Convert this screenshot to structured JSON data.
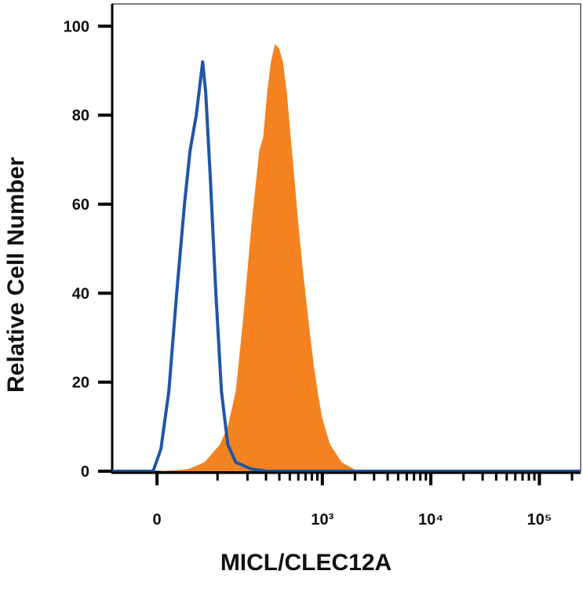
{
  "chart_data": {
    "type": "histogram-overlay",
    "x_label": "MICL/CLEC12A",
    "y_label": "Relative Cell Number",
    "xscale": "biexponential",
    "xlim": [
      -66,
      240000
    ],
    "xticks": [
      {
        "value": 0,
        "label": "0"
      },
      {
        "value": 1000,
        "label": "10³"
      },
      {
        "value": 10000,
        "label": "10⁴"
      },
      {
        "value": 100000,
        "label": "10⁵"
      }
    ],
    "xminorticks": [
      100,
      200,
      300,
      400,
      500,
      600,
      700,
      800,
      900,
      2000,
      3000,
      4000,
      5000,
      6000,
      7000,
      8000,
      9000,
      20000,
      30000,
      40000,
      50000,
      60000,
      70000,
      80000,
      90000,
      200000
    ],
    "ylim": [
      0,
      105
    ],
    "yticks": [
      0,
      20,
      40,
      60,
      80,
      100
    ],
    "series": [
      {
        "style": "filled",
        "color": "#f58220",
        "x": [
          -66,
          0,
          31,
          43,
          71,
          106,
          128,
          154,
          183,
          218,
          259,
          282,
          307,
          334,
          364,
          397,
          432,
          470,
          510,
          555,
          603,
          656,
          713,
          776,
          843,
          917,
          996,
          1178,
          1512,
          2112,
          240000
        ],
        "values": [
          0,
          0,
          0.3,
          0.5,
          2,
          6,
          10,
          18,
          35,
          55,
          72,
          75,
          85,
          92,
          96,
          95,
          92,
          85,
          75,
          65,
          55,
          46,
          38,
          30,
          23,
          17,
          12,
          6,
          2,
          0,
          0
        ]
      },
      {
        "style": "outline",
        "color": "#1f56a6",
        "x": [
          -66,
          -5,
          5,
          15.2,
          25.8,
          37,
          45.6,
          55.9,
          67.6,
          73.7,
          83.7,
          96,
          110,
          128,
          154,
          218,
          307,
          240000
        ],
        "values": [
          0,
          0,
          5,
          18,
          40,
          60,
          72,
          80,
          92,
          85,
          65,
          40,
          18,
          6,
          2,
          0.5,
          0,
          0
        ]
      }
    ]
  }
}
